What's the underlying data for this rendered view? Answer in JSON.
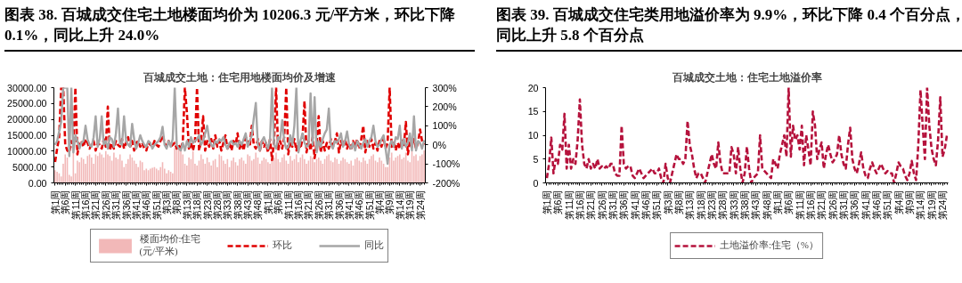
{
  "chart_data": [
    {
      "type": "bar",
      "title": "图表 38. 百城成交住宅土地楼面均价为 10206.3 元/平方米，环比下降 0.1%，同比上升 24.0%",
      "subtitle": "百城成交土地：住宅用地楼面均价及增速",
      "categories": [
        "第1周",
        null,
        null,
        null,
        null,
        "第6周",
        null,
        null,
        null,
        null,
        "第11周",
        null,
        null,
        null,
        null,
        "第16周",
        null,
        null,
        null,
        null,
        "第21周",
        null,
        null,
        null,
        null,
        "第26周",
        null,
        null,
        null,
        null,
        "第31周",
        null,
        null,
        null,
        null,
        "第36周",
        null,
        null,
        null,
        null,
        "第41周",
        null,
        null,
        null,
        null,
        "第46周",
        null,
        null,
        null,
        null,
        "第51周",
        null,
        null,
        null,
        null,
        "第3周",
        null,
        null,
        null,
        null,
        "第8周",
        null,
        null,
        null,
        null,
        "第13周",
        null,
        null,
        null,
        null,
        "第18周",
        null,
        null,
        null,
        null,
        "第23周",
        null,
        null,
        null,
        null,
        "第28周",
        null,
        null,
        null,
        null,
        "第33周",
        null,
        null,
        null,
        null,
        "第38周",
        null,
        null,
        null,
        null,
        "第43周",
        null,
        null,
        null,
        null,
        "第48周",
        null,
        null,
        null,
        null,
        "第1周",
        null,
        null,
        null,
        null,
        "第6周",
        null,
        null,
        null,
        null,
        "第11周",
        null,
        null,
        null,
        null,
        "第16周",
        null,
        null,
        null,
        null,
        "第21周",
        null,
        null,
        null,
        null,
        "第26周",
        null,
        null,
        null,
        null,
        "第31周",
        null,
        null,
        null,
        null,
        "第36周",
        null,
        null,
        null,
        null,
        "第41周",
        null,
        null,
        null,
        null,
        "第46周",
        null,
        null,
        null,
        null,
        "第51周",
        null,
        null,
        null,
        null,
        "第4周",
        null,
        null,
        null,
        null,
        "第9周",
        null,
        null,
        null,
        null,
        "第14周",
        null,
        null,
        null,
        null,
        "第19周",
        null,
        null,
        null,
        null,
        "第24周",
        null,
        null
      ],
      "ylim": [
        0,
        30000
      ],
      "yticks": [
        {
          "value": 0,
          "label": "0.00"
        },
        {
          "value": 5000,
          "label": "5000.00"
        },
        {
          "value": 10000,
          "label": "10000.00"
        },
        {
          "value": 15000,
          "label": "15000.00"
        },
        {
          "value": 20000,
          "label": "20000.00"
        },
        {
          "value": 25000,
          "label": "25000.00"
        },
        {
          "value": 30000,
          "label": "30000.00"
        }
      ],
      "y2lim": [
        -200,
        300
      ],
      "y2ticks": [
        {
          "value": -200,
          "label": "-200%"
        },
        {
          "value": -100,
          "label": "-100%"
        },
        {
          "value": 0,
          "label": "0%"
        },
        {
          "value": 100,
          "label": "100%"
        },
        {
          "value": 200,
          "label": "200%"
        },
        {
          "value": 300,
          "label": "300%"
        }
      ],
      "legend": "bottom",
      "series": [
        {
          "name": "楼面均价:住宅\n(元/平米)",
          "type": "bar",
          "color": "#f2b8b8",
          "values": [
            4000,
            3500,
            3000,
            2000,
            6000,
            9000,
            8000,
            2500,
            2000,
            10000,
            3000,
            7000,
            6500,
            8000,
            7500,
            6000,
            8500,
            9000,
            8000,
            6000,
            9000,
            8500,
            9500,
            9000,
            8000,
            10000,
            9000,
            8500,
            7000,
            9500,
            8000,
            7500,
            9000,
            7000,
            5000,
            6000,
            7500,
            9000,
            8000,
            7000,
            6000,
            5000,
            7000,
            6500,
            4000,
            4500,
            4000,
            4500,
            4800,
            5000,
            4500,
            4000,
            5000,
            6500,
            4500,
            3000,
            4000,
            3500,
            3000,
            11000,
            10500,
            11000,
            10000,
            9000,
            6000,
            5500,
            8000,
            7500,
            10000,
            6000,
            5500,
            7000,
            9000,
            7500,
            6000,
            8000,
            6500,
            5500,
            7000,
            7500,
            5000,
            9000,
            8500,
            7000,
            6000,
            7500,
            5000,
            7000,
            8000,
            6500,
            5500,
            7500,
            8000,
            7000,
            6000,
            9000,
            8500,
            7000,
            7500,
            9500,
            8000,
            6000,
            7000,
            8000,
            7500,
            6500,
            6000,
            7000,
            8000,
            9500,
            7500,
            6500,
            8000,
            9000,
            7000,
            6000,
            8500,
            7000,
            7500,
            9000,
            6500,
            8000,
            9000,
            7500,
            6000,
            7000,
            8500,
            8000,
            6500,
            7500,
            8000,
            7000,
            6000,
            7500,
            8500,
            9000,
            7000,
            6500,
            8000,
            7500,
            6000,
            7000,
            8000,
            7500,
            6500,
            6000,
            7000,
            5500,
            7500,
            8000,
            7000,
            6500,
            8000,
            7000,
            6000,
            7500,
            8500,
            9000,
            7000,
            6500,
            8000,
            7000,
            6000,
            5000,
            5000,
            8000,
            9500,
            7000,
            8000,
            8500,
            9000,
            7500,
            8000,
            9500,
            7000,
            6500,
            10000,
            8500,
            9000,
            7000,
            8500,
            9000,
            10206.3
          ]
        },
        {
          "name": "环比",
          "type": "line",
          "axis": "y2",
          "color": "#e00000",
          "line_style": "dashed",
          "values": [
            -90,
            -20,
            40,
            300,
            300,
            0,
            -30,
            -40,
            20,
            -20,
            300,
            -50,
            10,
            20,
            -10,
            30,
            10,
            -20,
            0,
            20,
            -30,
            10,
            0,
            -20,
            30,
            -10,
            200,
            -30,
            10,
            -20,
            20,
            0,
            -10,
            30,
            -20,
            10,
            40,
            -10,
            20,
            -30,
            10,
            20,
            -10,
            10,
            -20,
            -30,
            10,
            0,
            -10,
            20,
            0,
            -10,
            20,
            50,
            10,
            -10,
            20,
            -10,
            0,
            10,
            -20,
            0,
            -30,
            20,
            300,
            170,
            -20,
            10,
            -30,
            20,
            300,
            -30,
            20,
            150,
            -30,
            20,
            -10,
            30,
            -20,
            50,
            -10,
            20,
            -30,
            10,
            50,
            -20,
            10,
            -30,
            20,
            0,
            60,
            -20,
            10,
            -30,
            40,
            20,
            -10,
            100,
            0,
            -20,
            30,
            -30,
            20,
            -10,
            10,
            -40,
            30,
            -80,
            20,
            300,
            -30,
            20,
            -20,
            40,
            300,
            -50,
            20,
            -10,
            30,
            -30,
            10,
            -20,
            30,
            230,
            -40,
            20,
            -30,
            40,
            -70,
            10,
            150,
            -40,
            20,
            -30,
            10,
            -20,
            30,
            -10,
            20,
            60,
            -40,
            20,
            -10,
            30,
            -20,
            10,
            -30,
            20,
            -10,
            30,
            -20,
            30,
            100,
            -40,
            20,
            -10,
            30,
            -20,
            10,
            -30,
            20,
            -10,
            40,
            -20,
            10,
            300,
            -10,
            20,
            -30,
            10,
            -20,
            30,
            -10,
            120,
            -50,
            20,
            -10,
            30,
            -20,
            10,
            80,
            20,
            -0.1
          ]
        },
        {
          "name": "同比",
          "type": "line",
          "axis": "y2",
          "color": "#a6a6a6",
          "line_style": "solid",
          "values": [
            0,
            20,
            70,
            120,
            300,
            300,
            300,
            -60,
            300,
            -40,
            50,
            20,
            -20,
            10,
            20,
            100,
            30,
            0,
            -10,
            40,
            150,
            -10,
            30,
            150,
            0,
            20,
            -20,
            40,
            30,
            -10,
            60,
            190,
            10,
            0,
            150,
            20,
            0,
            -10,
            110,
            30,
            -20,
            10,
            50,
            20,
            0,
            -10,
            20,
            10,
            -20,
            0,
            10,
            20,
            40,
            95,
            0,
            -20,
            20,
            -10,
            30,
            300,
            0,
            -20,
            -30,
            10,
            -30,
            20,
            -10,
            40,
            10,
            20,
            30,
            50,
            0,
            20,
            60,
            100,
            30,
            0,
            -10,
            20,
            10,
            30,
            20,
            40,
            0,
            -20,
            10,
            20,
            0,
            10,
            -10,
            20,
            0,
            30,
            60,
            -10,
            20,
            50,
            140,
            220,
            0,
            -30,
            20,
            40,
            10,
            -20,
            30,
            300,
            0,
            -20,
            40,
            30,
            130,
            20,
            -20,
            -10,
            50,
            0,
            100,
            300,
            -40,
            20,
            60,
            10,
            -10,
            0,
            270,
            0,
            250,
            -40,
            20,
            -10,
            30,
            60,
            80,
            190,
            0,
            -20,
            20,
            10,
            30,
            60,
            -10,
            20,
            70,
            0,
            -20,
            10,
            -30,
            20,
            0,
            -20,
            10,
            30,
            -10,
            20,
            40,
            100,
            20,
            -10,
            0,
            30,
            50,
            -20,
            -100,
            0,
            20,
            -10,
            40,
            30,
            100,
            -20,
            30,
            -10,
            10,
            60,
            -30,
            150,
            -30,
            20,
            10,
            -20,
            24
          ]
        }
      ]
    },
    {
      "type": "line",
      "title": "图表 39. 百城成交住宅类用地溢价率为 9.9%，环比下降 0.4 个百分点，同比上升 5.8 个百分点",
      "subtitle": "百城成交土地：住宅土地溢价率",
      "categories": [
        "第1周",
        null,
        null,
        null,
        null,
        "第6周",
        null,
        null,
        null,
        null,
        "第11周",
        null,
        null,
        null,
        null,
        "第16周",
        null,
        null,
        null,
        null,
        "第21周",
        null,
        null,
        null,
        null,
        "第26周",
        null,
        null,
        null,
        null,
        "第31周",
        null,
        null,
        null,
        null,
        "第36周",
        null,
        null,
        null,
        null,
        "第41周",
        null,
        null,
        null,
        null,
        "第46周",
        null,
        null,
        null,
        null,
        "第51周",
        null,
        null,
        null,
        null,
        "第3周",
        null,
        null,
        null,
        null,
        "第8周",
        null,
        null,
        null,
        null,
        "第13周",
        null,
        null,
        null,
        null,
        "第18周",
        null,
        null,
        null,
        null,
        "第23周",
        null,
        null,
        null,
        null,
        "第28周",
        null,
        null,
        null,
        null,
        "第33周",
        null,
        null,
        null,
        null,
        "第38周",
        null,
        null,
        null,
        null,
        "第43周",
        null,
        null,
        null,
        null,
        "第48周",
        null,
        null,
        null,
        null,
        "第1周",
        null,
        null,
        null,
        null,
        "第6周",
        null,
        null,
        null,
        null,
        "第11周",
        null,
        null,
        null,
        null,
        "第16周",
        null,
        null,
        null,
        null,
        "第21周",
        null,
        null,
        null,
        null,
        "第26周",
        null,
        null,
        null,
        null,
        "第31周",
        null,
        null,
        null,
        null,
        "第36周",
        null,
        null,
        null,
        null,
        "第41周",
        null,
        null,
        null,
        null,
        "第46周",
        null,
        null,
        null,
        null,
        "第51周",
        null,
        null,
        null,
        null,
        "第4周",
        null,
        null,
        null,
        null,
        "第9周",
        null,
        null,
        null,
        null,
        "第14周",
        null,
        null,
        null,
        null,
        "第19周",
        null,
        null,
        null,
        null,
        "第24周",
        null,
        null
      ],
      "ylim": [
        0,
        20
      ],
      "yticks": [
        0,
        5,
        10,
        15,
        20
      ],
      "legend": "bottom",
      "series": [
        {
          "name": "土地溢价率:住宅（%）",
          "color": "#b5123c",
          "line_style": "dashed",
          "values": [
            1,
            4,
            9.5,
            2,
            5,
            4,
            8,
            7,
            14.5,
            3,
            8,
            3,
            5,
            4,
            9,
            17.5,
            8,
            4,
            3,
            5,
            3,
            4,
            3,
            5,
            3,
            3.5,
            3,
            3.5,
            3,
            4,
            4,
            2,
            1.5,
            1.5,
            12,
            4,
            3,
            3.5,
            3.5,
            1.5,
            1,
            2,
            3,
            2,
            1,
            1.5,
            2,
            2.5,
            3,
            2,
            2,
            3,
            1,
            0,
            4,
            1,
            0,
            2,
            4,
            6,
            5,
            5,
            4,
            5,
            13,
            8,
            6,
            3,
            1,
            2,
            2,
            1,
            0,
            2,
            4,
            6,
            4,
            3,
            8.5,
            4,
            2,
            2,
            2,
            2,
            7.5,
            6,
            2,
            7.5,
            3,
            0,
            2,
            7.6,
            3,
            0,
            1,
            1.5,
            2,
            10,
            3,
            2.5,
            2,
            1.5,
            1,
            5,
            4,
            3,
            6,
            8,
            10,
            5.5,
            20,
            5.5,
            12,
            9,
            10,
            7,
            12,
            3.7,
            10,
            7,
            3.7,
            15,
            12,
            5,
            7,
            8.5,
            3,
            6,
            8,
            6,
            4.3,
            5,
            6,
            10,
            6,
            4,
            3,
            8,
            11.6,
            5,
            3,
            2,
            4,
            6.4,
            3,
            1.5,
            1,
            3,
            4.3,
            3,
            2,
            3,
            4,
            3,
            2,
            2.5,
            2,
            2,
            0,
            2,
            4.3,
            3.5,
            3,
            1.5,
            0.6,
            2,
            4.6,
            2,
            0.6,
            8,
            19.5,
            12,
            5,
            20,
            12,
            7.3,
            5,
            3.7,
            9,
            18,
            5.5,
            7,
            9.9
          ]
        }
      ]
    }
  ]
}
